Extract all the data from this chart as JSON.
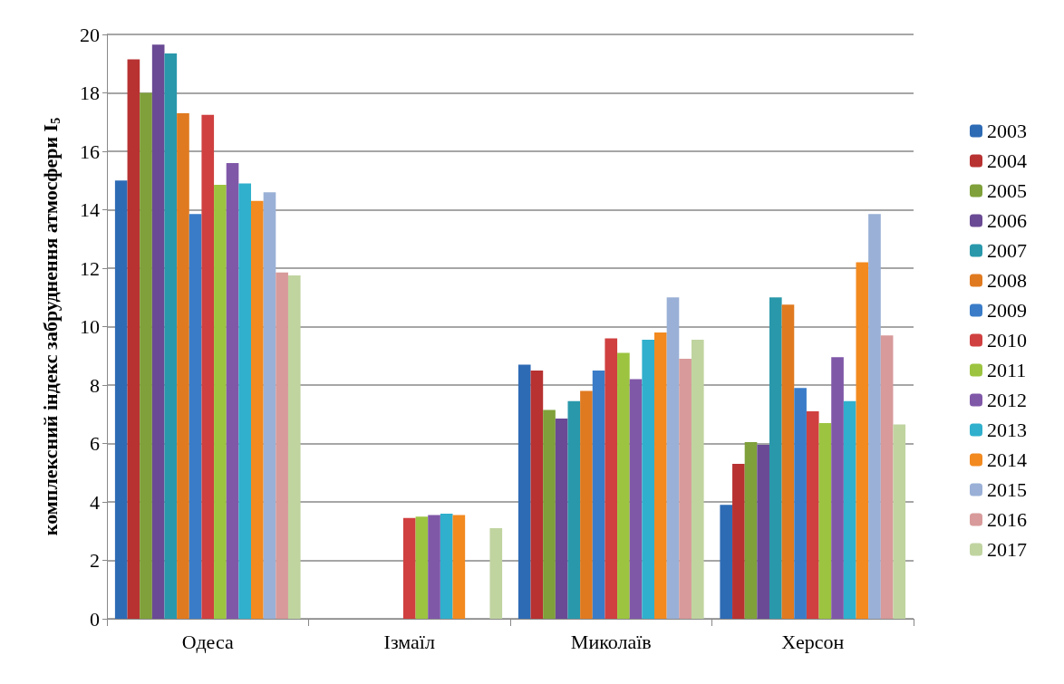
{
  "chart_data": {
    "type": "bar",
    "ylabel": "комплексний індекс забруднення атмосфери I$_{5}$",
    "categories": [
      "Одеса",
      "Ізмаїл",
      "Миколаїв",
      "Херсон"
    ],
    "ylim": [
      0,
      20
    ],
    "yticks": [
      0,
      2,
      4,
      6,
      8,
      10,
      12,
      14,
      16,
      18,
      20
    ],
    "grid": "y",
    "legend": "right",
    "series": [
      {
        "name": "2003",
        "color": "#2e6bb5",
        "values": [
          15.0,
          null,
          8.7,
          3.9
        ]
      },
      {
        "name": "2004",
        "color": "#b83232",
        "values": [
          19.15,
          null,
          8.5,
          5.3
        ]
      },
      {
        "name": "2005",
        "color": "#7fa03a",
        "values": [
          18.0,
          null,
          7.15,
          6.05
        ]
      },
      {
        "name": "2006",
        "color": "#6a4a94",
        "values": [
          19.65,
          null,
          6.85,
          5.95
        ]
      },
      {
        "name": "2007",
        "color": "#2a98ab",
        "values": [
          19.35,
          null,
          7.45,
          11.0
        ]
      },
      {
        "name": "2008",
        "color": "#e07a20",
        "values": [
          17.3,
          null,
          7.8,
          10.75
        ]
      },
      {
        "name": "2009",
        "color": "#3a7cc8",
        "values": [
          13.85,
          null,
          8.5,
          7.9
        ]
      },
      {
        "name": "2010",
        "color": "#d04040",
        "values": [
          17.25,
          3.45,
          9.6,
          7.1
        ]
      },
      {
        "name": "2011",
        "color": "#9cc440",
        "values": [
          14.85,
          3.5,
          9.1,
          6.7
        ]
      },
      {
        "name": "2012",
        "color": "#8058a8",
        "values": [
          15.6,
          3.55,
          8.2,
          8.95
        ]
      },
      {
        "name": "2013",
        "color": "#30b0cc",
        "values": [
          14.9,
          3.6,
          9.55,
          7.45
        ]
      },
      {
        "name": "2014",
        "color": "#f28a20",
        "values": [
          14.3,
          3.55,
          9.8,
          12.2
        ]
      },
      {
        "name": "2015",
        "color": "#9ab0d6",
        "values": [
          14.6,
          null,
          11.0,
          13.85
        ]
      },
      {
        "name": "2016",
        "color": "#d89a9a",
        "values": [
          11.85,
          null,
          8.9,
          9.7
        ]
      },
      {
        "name": "2017",
        "color": "#c0d4a0",
        "values": [
          11.75,
          3.1,
          9.55,
          6.65
        ]
      }
    ]
  }
}
